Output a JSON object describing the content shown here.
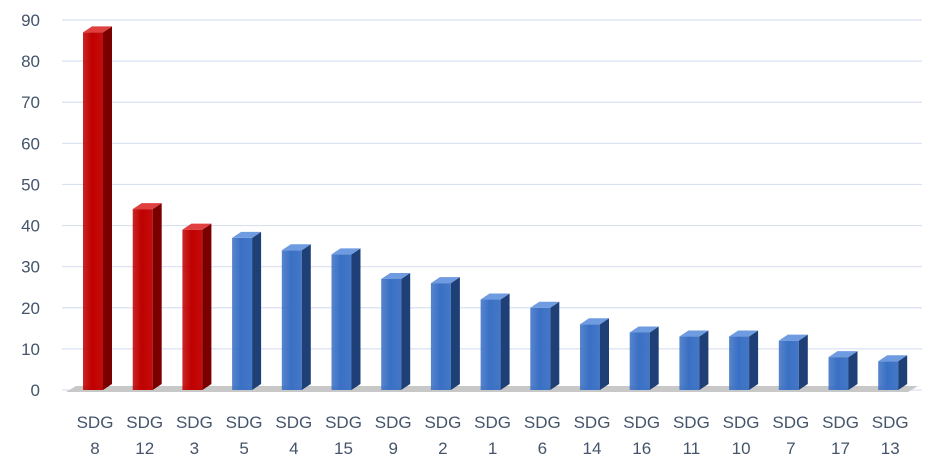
{
  "chart_data": {
    "type": "bar",
    "style": "3d-column",
    "categories": [
      [
        "SDG",
        "8"
      ],
      [
        "SDG",
        "12"
      ],
      [
        "SDG",
        "3"
      ],
      [
        "SDG",
        "5"
      ],
      [
        "SDG",
        "4"
      ],
      [
        "SDG",
        "15"
      ],
      [
        "SDG",
        "9"
      ],
      [
        "SDG",
        "2"
      ],
      [
        "SDG",
        "1"
      ],
      [
        "SDG",
        "6"
      ],
      [
        "SDG",
        "14"
      ],
      [
        "SDG",
        "16"
      ],
      [
        "SDG",
        "11"
      ],
      [
        "SDG",
        "10"
      ],
      [
        "SDG",
        "7"
      ],
      [
        "SDG",
        "17"
      ],
      [
        "SDG",
        "13"
      ]
    ],
    "values": [
      87,
      44,
      39,
      37,
      34,
      33,
      27,
      26,
      22,
      20,
      16,
      14,
      13,
      13,
      12,
      8,
      7
    ],
    "highlighted": [
      true,
      true,
      true,
      false,
      false,
      false,
      false,
      false,
      false,
      false,
      false,
      false,
      false,
      false,
      false,
      false,
      false
    ],
    "yticks": [
      "0",
      "10",
      "20",
      "30",
      "40",
      "50",
      "60",
      "70",
      "80",
      "90"
    ],
    "ylim": [
      0,
      90
    ],
    "grid": true,
    "legend": "none",
    "colors": {
      "highlight_front": "#c00000",
      "highlight_side": "#7a0000",
      "highlight_top": "#e04040",
      "normal_front": "#3a70c4",
      "normal_side": "#1f3f77",
      "normal_top": "#6f9be0",
      "gridline": "#d9e1f0",
      "floor": "#c8c8c8",
      "text": "#44546a"
    }
  }
}
